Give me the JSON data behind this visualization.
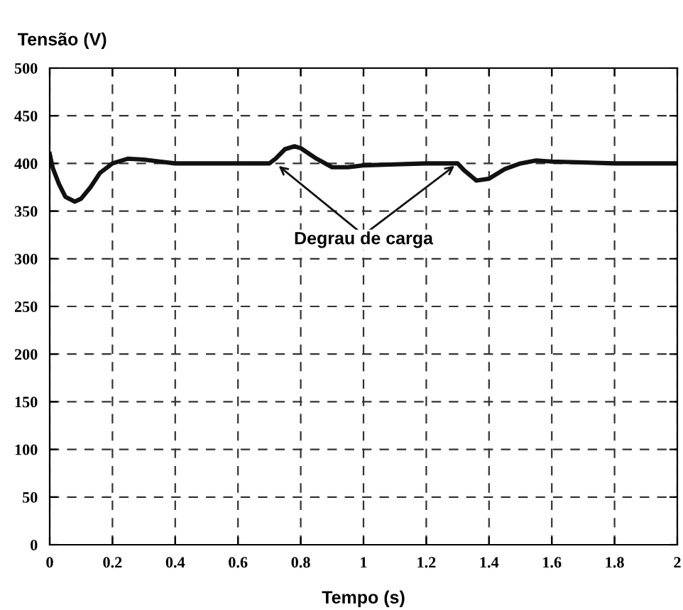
{
  "chart_data": {
    "type": "line",
    "ylabel": "Tensão (V)",
    "xlabel": "Tempo (s)",
    "x": [
      0,
      0.01,
      0.03,
      0.05,
      0.08,
      0.1,
      0.13,
      0.16,
      0.2,
      0.25,
      0.3,
      0.35,
      0.4,
      0.5,
      0.6,
      0.7,
      0.72,
      0.75,
      0.78,
      0.8,
      0.85,
      0.9,
      0.95,
      1.0,
      1.1,
      1.2,
      1.3,
      1.32,
      1.36,
      1.4,
      1.45,
      1.5,
      1.55,
      1.6,
      1.7,
      1.8,
      1.9,
      2.0
    ],
    "series": [
      {
        "color": "#111111",
        "values": [
          410,
          395,
          378,
          365,
          360,
          363,
          375,
          390,
          400,
          405,
          404,
          402,
          400,
          400,
          400,
          400,
          405,
          415,
          418,
          416,
          405,
          396,
          396,
          398,
          399,
          400,
          400,
          393,
          382,
          384,
          394,
          400,
          403,
          402,
          401,
          400,
          400,
          400
        ]
      }
    ],
    "annotations": [
      {
        "text": "Degrau de carga",
        "x": 0.72,
        "y": 400
      }
    ],
    "xlim": [
      0,
      2
    ],
    "ylim": [
      0,
      500
    ],
    "xticks": [
      0,
      0.2,
      0.4,
      0.6,
      0.8,
      1,
      1.2,
      1.4,
      1.6,
      1.8,
      2
    ],
    "yticks": [
      0,
      50,
      100,
      150,
      200,
      250,
      300,
      350,
      400,
      450,
      500
    ],
    "grid": true,
    "line_style": "solid",
    "marker": "none",
    "legend": false
  }
}
